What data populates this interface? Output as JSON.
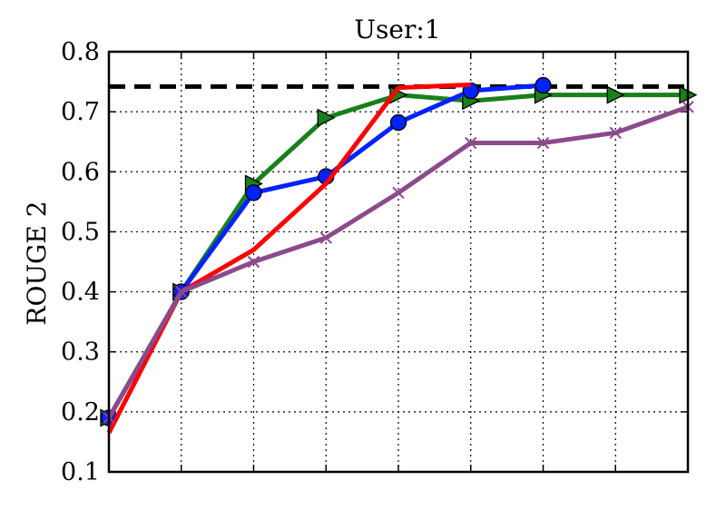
{
  "chart_data": {
    "type": "line",
    "title": "User:1",
    "xlabel": "",
    "ylabel": "ROUGE 2",
    "ylim": [
      0.1,
      0.8
    ],
    "yticks": [
      "0.1",
      "0.2",
      "0.3",
      "0.4",
      "0.5",
      "0.6",
      "0.7",
      "0.8"
    ],
    "x_ticks_labeled": false,
    "grid": true,
    "reference_line": {
      "y": 0.742,
      "style": "dashed",
      "color": "#000000"
    },
    "x": [
      0,
      1,
      2,
      3,
      4,
      5,
      6,
      7,
      8
    ],
    "series": [
      {
        "color": "#1a7f1a",
        "marker": "triangle-right",
        "values": [
          0.19,
          0.4,
          0.58,
          0.69,
          0.728,
          0.718,
          0.728,
          0.728,
          0.728
        ]
      },
      {
        "color": "#0022ff",
        "marker": "circle",
        "values": [
          0.19,
          0.4,
          0.565,
          0.592,
          0.682,
          0.735,
          0.744,
          null,
          null
        ]
      },
      {
        "color": "#ff0000",
        "marker": "none",
        "values": [
          0.165,
          0.4,
          0.47,
          0.58,
          0.74,
          0.745,
          null,
          null,
          null
        ]
      },
      {
        "color": "#8b4a8b",
        "marker": "x",
        "values": [
          0.19,
          0.4,
          0.45,
          0.49,
          0.565,
          0.648,
          0.648,
          0.665,
          0.708
        ]
      }
    ]
  }
}
